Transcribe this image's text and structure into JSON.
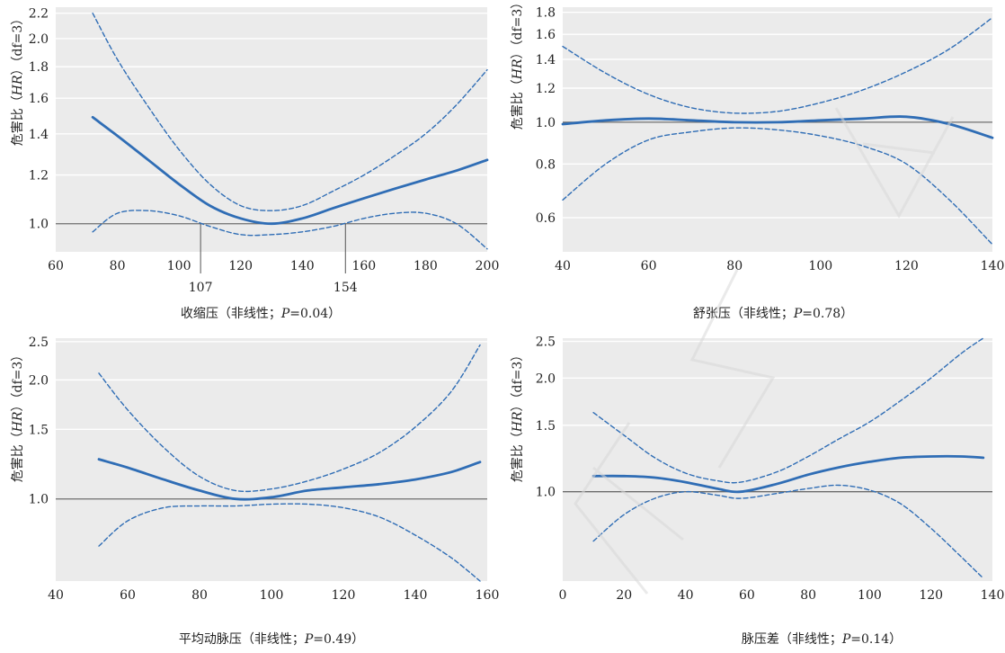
{
  "chart_data": [
    {
      "type": "line",
      "xlabel_main": "收缩压（非线性；",
      "xlabel_p": "P",
      "xlabel_tail": "=0.04）",
      "ylabel_main": "危害比（",
      "ylabel_hr": "HR",
      "ylabel_tail": "）（df=3）",
      "xlim": [
        60,
        200
      ],
      "xticks": [
        60,
        80,
        100,
        120,
        140,
        160,
        180,
        200
      ],
      "y_scale": "log",
      "yticks": [
        1.0,
        1.2,
        1.4,
        1.6,
        1.8,
        2.0,
        2.2
      ],
      "ytick_labels": [
        "1.0",
        "1.2",
        "1.4",
        "1.6",
        "1.8",
        "2.0",
        "2.2"
      ],
      "reference_y": 1.0,
      "annotations": [
        {
          "x": 107,
          "label": "107"
        },
        {
          "x": 154,
          "label": "154"
        }
      ],
      "series": [
        {
          "role": "estimate",
          "x": [
            72,
            80,
            90,
            100,
            110,
            120,
            130,
            140,
            150,
            160,
            170,
            180,
            190,
            200
          ],
          "y": [
            1.49,
            1.39,
            1.27,
            1.16,
            1.07,
            1.02,
            1.0,
            1.02,
            1.06,
            1.1,
            1.14,
            1.18,
            1.22,
            1.27
          ]
        },
        {
          "role": "upper",
          "x": [
            72,
            80,
            90,
            100,
            110,
            120,
            130,
            140,
            150,
            160,
            170,
            180,
            190,
            200
          ],
          "y": [
            2.2,
            1.85,
            1.55,
            1.32,
            1.16,
            1.07,
            1.05,
            1.07,
            1.13,
            1.2,
            1.29,
            1.4,
            1.56,
            1.78
          ]
        },
        {
          "role": "lower",
          "x": [
            72,
            80,
            90,
            100,
            110,
            120,
            130,
            140,
            150,
            160,
            170,
            180,
            190,
            200
          ],
          "y": [
            0.97,
            1.04,
            1.05,
            1.03,
            0.99,
            0.96,
            0.96,
            0.97,
            0.99,
            1.02,
            1.04,
            1.04,
            1.0,
            0.91
          ]
        }
      ]
    },
    {
      "type": "line",
      "xlabel_main": "舒张压（非线性；",
      "xlabel_p": "P",
      "xlabel_tail": "=0.78）",
      "ylabel_main": "危害比（",
      "ylabel_hr": "HR",
      "ylabel_tail": "）（df=3）",
      "xlim": [
        40,
        140
      ],
      "xticks": [
        40,
        60,
        80,
        100,
        120,
        140
      ],
      "y_scale": "log",
      "yticks": [
        0.6,
        0.8,
        1.0,
        1.2,
        1.4,
        1.6,
        1.8
      ],
      "ytick_labels": [
        "0.6",
        "0.8",
        "1.0",
        "1.2",
        "1.4",
        "1.6",
        "1.8"
      ],
      "reference_y": 1.0,
      "annotations": [],
      "series": [
        {
          "role": "estimate",
          "x": [
            40,
            50,
            60,
            70,
            80,
            90,
            100,
            110,
            120,
            130,
            140
          ],
          "y": [
            0.99,
            1.01,
            1.02,
            1.01,
            1.0,
            1.0,
            1.01,
            1.02,
            1.03,
            0.99,
            0.92
          ]
        },
        {
          "role": "upper",
          "x": [
            40,
            50,
            60,
            70,
            80,
            90,
            100,
            110,
            120,
            130,
            140
          ],
          "y": [
            1.5,
            1.3,
            1.16,
            1.08,
            1.05,
            1.06,
            1.11,
            1.19,
            1.31,
            1.48,
            1.75
          ]
        },
        {
          "role": "lower",
          "x": [
            40,
            50,
            60,
            70,
            80,
            90,
            100,
            110,
            120,
            130,
            140
          ],
          "y": [
            0.66,
            0.8,
            0.91,
            0.95,
            0.97,
            0.96,
            0.93,
            0.88,
            0.8,
            0.66,
            0.52
          ]
        }
      ]
    },
    {
      "type": "line",
      "xlabel_main": "平均动脉压（非线性；",
      "xlabel_p": "P",
      "xlabel_tail": "=0.49）",
      "ylabel_main": "危害比（",
      "ylabel_hr": "HR",
      "ylabel_tail": "）（df=3）",
      "xlim": [
        40,
        160
      ],
      "xticks": [
        40,
        60,
        80,
        100,
        120,
        140,
        160
      ],
      "y_scale": "log",
      "yticks": [
        1.0,
        1.5,
        2.0,
        2.5
      ],
      "ytick_labels": [
        "1.0",
        "1.5",
        "2.0",
        "2.5"
      ],
      "reference_y": 1.0,
      "annotations": [],
      "series": [
        {
          "role": "estimate",
          "x": [
            52,
            60,
            70,
            80,
            90,
            100,
            110,
            120,
            130,
            140,
            150,
            158
          ],
          "y": [
            1.26,
            1.2,
            1.12,
            1.05,
            1.0,
            1.01,
            1.05,
            1.07,
            1.09,
            1.12,
            1.17,
            1.24
          ]
        },
        {
          "role": "upper",
          "x": [
            52,
            60,
            70,
            80,
            90,
            100,
            110,
            120,
            130,
            140,
            150,
            158
          ],
          "y": [
            2.08,
            1.68,
            1.35,
            1.14,
            1.05,
            1.06,
            1.11,
            1.19,
            1.31,
            1.52,
            1.87,
            2.45
          ]
        },
        {
          "role": "lower",
          "x": [
            52,
            60,
            70,
            80,
            90,
            100,
            110,
            120,
            130,
            140,
            150,
            158
          ],
          "y": [
            0.76,
            0.88,
            0.95,
            0.96,
            0.96,
            0.97,
            0.97,
            0.95,
            0.9,
            0.81,
            0.71,
            0.62
          ]
        }
      ]
    },
    {
      "type": "line",
      "xlabel_main": "脉压差（非线性；",
      "xlabel_p": "P",
      "xlabel_tail": "=0.14）",
      "ylabel_main": "危害比（",
      "ylabel_hr": "HR",
      "ylabel_tail": "）（df=3）",
      "xlim": [
        0,
        140
      ],
      "xticks": [
        0,
        20,
        40,
        60,
        80,
        100,
        120,
        140
      ],
      "y_scale": "log",
      "yticks": [
        1.0,
        1.5,
        2.0,
        2.5
      ],
      "ytick_labels": [
        "1.0",
        "1.5",
        "2.0",
        "2.5"
      ],
      "reference_y": 1.0,
      "annotations": [],
      "series": [
        {
          "role": "estimate",
          "x": [
            10,
            20,
            30,
            40,
            50,
            58,
            70,
            80,
            90,
            100,
            110,
            120,
            130,
            137
          ],
          "y": [
            1.1,
            1.1,
            1.09,
            1.06,
            1.02,
            1.0,
            1.05,
            1.11,
            1.16,
            1.2,
            1.23,
            1.24,
            1.24,
            1.23
          ]
        },
        {
          "role": "upper",
          "x": [
            10,
            20,
            30,
            40,
            50,
            58,
            70,
            80,
            90,
            100,
            110,
            120,
            130,
            137
          ],
          "y": [
            1.62,
            1.41,
            1.23,
            1.12,
            1.07,
            1.06,
            1.13,
            1.24,
            1.38,
            1.53,
            1.74,
            2.0,
            2.33,
            2.55
          ]
        },
        {
          "role": "lower",
          "x": [
            10,
            20,
            30,
            40,
            50,
            58,
            70,
            80,
            90,
            100,
            110,
            120,
            130,
            137
          ],
          "y": [
            0.74,
            0.87,
            0.96,
            1.0,
            0.98,
            0.96,
            0.99,
            1.02,
            1.04,
            1.01,
            0.93,
            0.8,
            0.67,
            0.59
          ]
        }
      ]
    }
  ]
}
